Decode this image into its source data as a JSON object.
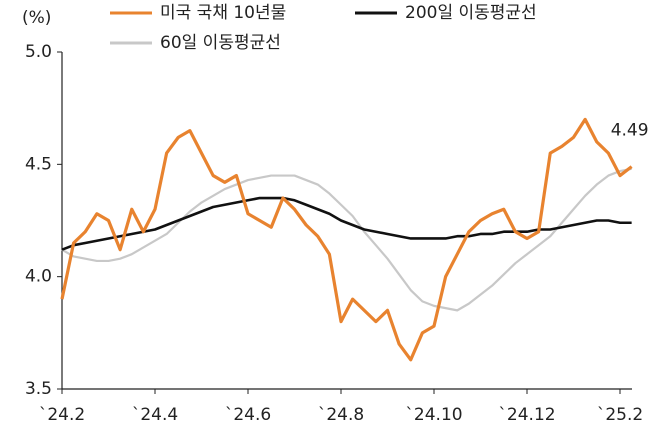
{
  "chart_data": {
    "type": "line",
    "y_label": "(%)",
    "categories": [
      "`24.2",
      null,
      null,
      null,
      null,
      null,
      null,
      null,
      "`24.4",
      null,
      null,
      null,
      null,
      null,
      null,
      null,
      "`24.6",
      null,
      null,
      null,
      null,
      null,
      null,
      null,
      "`24.8",
      null,
      null,
      null,
      null,
      null,
      null,
      null,
      "`24.10",
      null,
      null,
      null,
      null,
      null,
      null,
      null,
      "`24.12",
      null,
      null,
      null,
      null,
      null,
      null,
      null,
      "`25.2",
      null
    ],
    "ylim": [
      3.5,
      5.0
    ],
    "yticks": [
      3.5,
      {
        "value": 4,
        "label": "4.0"
      },
      4.5,
      {
        "value": 5,
        "label": "5.0"
      }
    ],
    "grid": false,
    "series": [
      {
        "name": "미국 국채 10년물",
        "color": "#e8832f",
        "label_last": true,
        "values": [
          3.9,
          4.15,
          4.2,
          4.28,
          4.25,
          4.12,
          4.3,
          4.2,
          4.3,
          4.55,
          4.62,
          4.65,
          4.55,
          4.45,
          4.42,
          4.45,
          4.28,
          4.25,
          4.22,
          4.35,
          4.3,
          4.23,
          4.18,
          4.1,
          3.8,
          3.9,
          3.85,
          3.8,
          3.85,
          3.7,
          3.63,
          3.75,
          3.78,
          4.0,
          4.1,
          4.2,
          4.25,
          4.28,
          4.3,
          4.2,
          4.17,
          4.2,
          4.55,
          4.58,
          4.62,
          4.7,
          4.6,
          4.55,
          4.45,
          4.49
        ]
      },
      {
        "name": "200일 이동평균선",
        "color": "#111111",
        "values": [
          4.12,
          4.14,
          4.15,
          4.16,
          4.17,
          4.18,
          4.19,
          4.2,
          4.21,
          4.23,
          4.25,
          4.27,
          4.29,
          4.31,
          4.32,
          4.33,
          4.34,
          4.35,
          4.35,
          4.35,
          4.34,
          4.32,
          4.3,
          4.28,
          4.25,
          4.23,
          4.21,
          4.2,
          4.19,
          4.18,
          4.17,
          4.17,
          4.17,
          4.17,
          4.18,
          4.18,
          4.19,
          4.19,
          4.2,
          4.2,
          4.2,
          4.21,
          4.21,
          4.22,
          4.23,
          4.24,
          4.25,
          4.25,
          4.24,
          4.24
        ]
      },
      {
        "name": "60일 이동평균선",
        "color": "#c8c8c8",
        "values": [
          4.12,
          4.09,
          4.08,
          4.07,
          4.07,
          4.08,
          4.1,
          4.13,
          4.16,
          4.19,
          4.24,
          4.29,
          4.33,
          4.36,
          4.39,
          4.41,
          4.43,
          4.44,
          4.45,
          4.45,
          4.45,
          4.43,
          4.41,
          4.37,
          4.32,
          4.27,
          4.2,
          4.14,
          4.08,
          4.01,
          3.94,
          3.89,
          3.87,
          3.86,
          3.85,
          3.88,
          3.92,
          3.96,
          4.01,
          4.06,
          4.1,
          4.14,
          4.18,
          4.24,
          4.3,
          4.36,
          4.41,
          4.45,
          4.47,
          4.48
        ]
      }
    ]
  }
}
